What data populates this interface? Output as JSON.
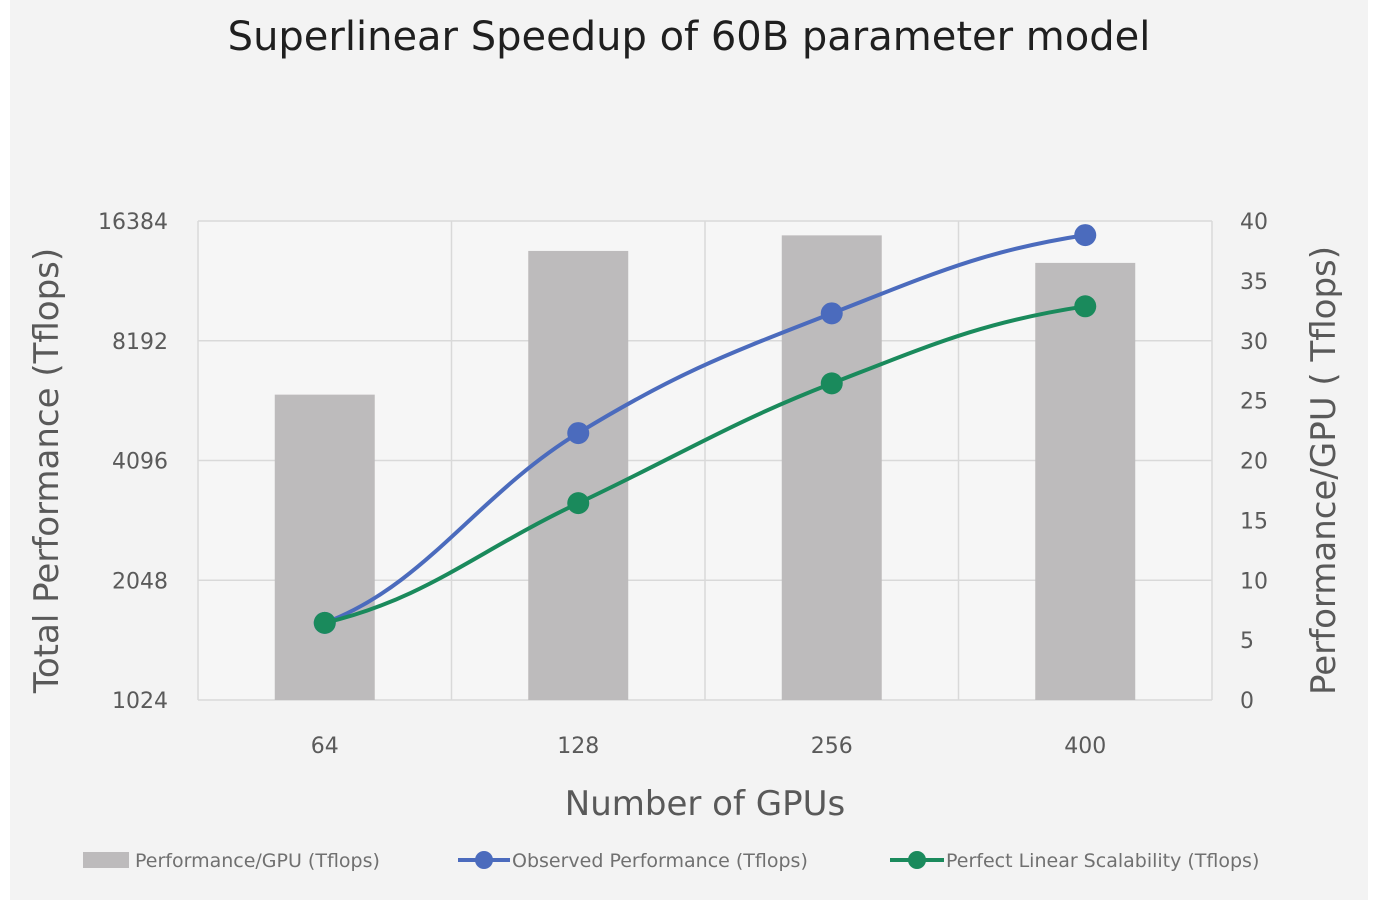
{
  "chart_data": {
    "type": "bar",
    "title": "Superlinear Speedup of 60B parameter model",
    "categories": [
      "64",
      "128",
      "256",
      "400"
    ],
    "xlabel": "Number of GPUs",
    "ylabel_left": "Total Performance (Tflops)",
    "ylabel_right": "Performance/GPU ( Tflops)",
    "y_left": {
      "scale": "log2",
      "ticks": [
        "1024",
        "2048",
        "4096",
        "8192",
        "16384"
      ],
      "range": [
        1024,
        16384
      ]
    },
    "y_right": {
      "scale": "linear",
      "ticks": [
        "0",
        "5",
        "10",
        "15",
        "20",
        "25",
        "30",
        "35",
        "40"
      ],
      "range": [
        0,
        40
      ]
    },
    "grid": true,
    "legend_position": "bottom",
    "bar_series": {
      "name": "Performance/GPU (Tflops)",
      "axis": "right",
      "values": [
        25.5,
        37.5,
        38.8,
        36.5
      ],
      "color": "#bdbbbc"
    },
    "line_series": [
      {
        "name": "Observed Performance (Tflops)",
        "axis": "left",
        "values": [
          1600,
          4800,
          9600,
          15100
        ],
        "color": "#4b6bbd"
      },
      {
        "name": "Perfect Linear Scalability (Tflops)",
        "axis": "left",
        "values": [
          1600,
          3200,
          6400,
          10000
        ],
        "color": "#1a8a5c"
      }
    ]
  }
}
